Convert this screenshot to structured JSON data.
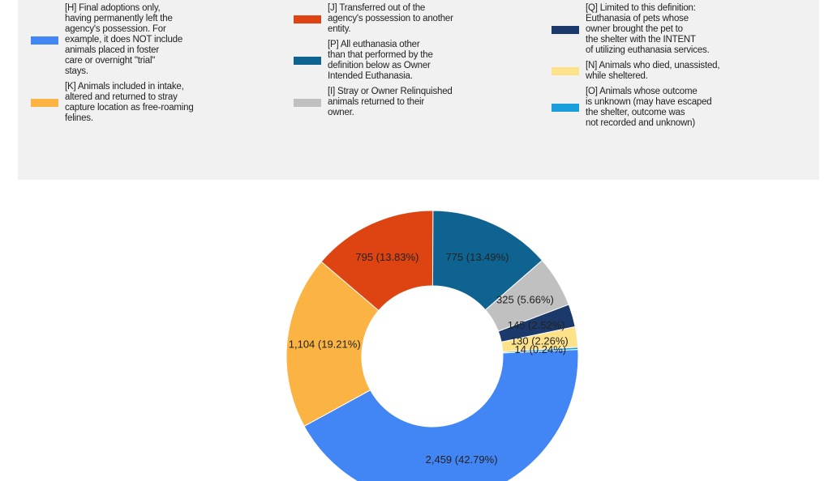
{
  "chart_data": {
    "type": "donut",
    "series": [
      {
        "name": "[H] Final adoptions only,\nhaving permanently left the\nagency's possession. For\nexample, it does NOT include\nanimals placed in foster\ncare or overnight \"trial\"\nstays.",
        "color": "#4285f4",
        "values": [
          2459
        ],
        "value_labels": [
          "2,459 (42.79%)"
        ]
      },
      {
        "name": "[K] Animals included in intake,\naltered and returned to stray\ncapture location as free-roaming\nfelines.",
        "color": "#fbb443",
        "values": [
          1104
        ],
        "value_labels": [
          "1,104 (19.21%)"
        ]
      },
      {
        "name": "[J] Transferred out of the\nagency's possession to another\nentity.",
        "color": "#dd4411",
        "values": [
          795
        ],
        "value_labels": [
          "795 (13.83%)"
        ]
      },
      {
        "name": "[P] All euthanasia other\nthan that performed by the\ndefinition below as Owner\nIntended Euthanasia.",
        "color": "#0e6390",
        "values": [
          775
        ],
        "value_labels": [
          "775 (13.49%)"
        ]
      },
      {
        "name": "[I] Stray or Owner Relinquished\nanimals returned to their\nowner.",
        "color": "#c0c0c0",
        "values": [
          325
        ],
        "value_labels": [
          "325 (5.66%)"
        ]
      },
      {
        "name": "[Q] Limited to this definition:\nEuthanasia of pets whose\nowner brought the pet to\nthe shelter with the INTENT\nof utilizing euthanasia services.",
        "color": "#1b3a6b",
        "values": [
          145
        ],
        "value_labels": [
          "145 (2.52%)"
        ]
      },
      {
        "name": "[N] Animals who died, unassisted,\nwhile sheltered.",
        "color": "#fde28a",
        "values": [
          130
        ],
        "value_labels": [
          "130 (2.26%)"
        ]
      },
      {
        "name": "[O] Animals whose outcome\nis unknown (may have escaped\nthe shelter, outcome was\nnot recorded and unknown)",
        "color": "#1a9fdc",
        "values": [
          14
        ],
        "value_labels": [
          "14 (0.24%)"
        ]
      }
    ]
  }
}
